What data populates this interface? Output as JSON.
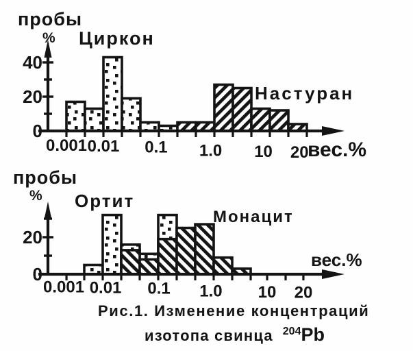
{
  "figure": {
    "caption": {
      "line1": "Рис.1. Изменение концентраций",
      "line2_text": "изотопа свинца",
      "isotope_mass": "204",
      "element_symbol": "Pb"
    },
    "charts": [
      {
        "y_axis_title": "пробы",
        "y_axis_unit": "%",
        "x_axis_unit": "вес.%",
        "series_labels": [
          "Циркон",
          "Настуран"
        ],
        "y_ticks": [
          {
            "v": 0,
            "label": "0"
          },
          {
            "v": 10,
            "label": ""
          },
          {
            "v": 20,
            "label": "20"
          },
          {
            "v": 30,
            "label": ""
          },
          {
            "v": 40,
            "label": "40"
          }
        ],
        "x_ticks": [
          {
            "pos": 0,
            "label": "0.001"
          },
          {
            "pos": 2,
            "label": "0.01"
          },
          {
            "pos": 4.85,
            "label": "0.1"
          },
          {
            "pos": 7.8,
            "label": "1.0"
          },
          {
            "pos": 10.65,
            "label": "10"
          },
          {
            "pos": 12.6,
            "label": "20"
          }
        ],
        "x_minor_ticks": [
          0,
          1,
          2,
          3,
          4,
          5,
          6,
          7,
          8,
          9,
          10,
          11,
          12,
          13
        ],
        "bars": [
          {
            "bin": 0,
            "h": 17,
            "p": "dots"
          },
          {
            "bin": 1,
            "h": 13,
            "p": "dots"
          },
          {
            "bin": 2,
            "h": 43,
            "p": "dots"
          },
          {
            "bin": 3,
            "h": 19,
            "p": "dots"
          },
          {
            "bin": 4,
            "h": 5,
            "p": "dots"
          },
          {
            "bin": 5,
            "h": 3,
            "p": "dots"
          },
          {
            "bin": 6,
            "h": 5,
            "p": "hatchUp"
          },
          {
            "bin": 7,
            "h": 5,
            "p": "hatchUp"
          },
          {
            "bin": 8,
            "h": 27,
            "p": "hatchUp"
          },
          {
            "bin": 9,
            "h": 25,
            "p": "hatchUp"
          },
          {
            "bin": 10,
            "h": 13,
            "p": "hatchUp"
          },
          {
            "bin": 11,
            "h": 12,
            "p": "hatchUp"
          },
          {
            "bin": 12,
            "h": 4,
            "p": "hatchUp"
          }
        ]
      },
      {
        "y_axis_title": "пробы",
        "y_axis_unit": "%",
        "x_axis_unit": "вес.%",
        "series_labels": [
          "Ортит",
          "Монацит"
        ],
        "y_ticks": [
          {
            "v": 0,
            "label": "0"
          },
          {
            "v": 10,
            "label": ""
          },
          {
            "v": 20,
            "label": "20"
          },
          {
            "v": 30,
            "label": ""
          }
        ],
        "x_ticks": [
          {
            "pos": -1.11,
            "label": "0.001"
          },
          {
            "pos": 1.15,
            "label": "0.01"
          },
          {
            "pos": 4.04,
            "label": "0.1"
          },
          {
            "pos": 6.85,
            "label": "1.0"
          },
          {
            "pos": 9.89,
            "label": "10"
          },
          {
            "pos": 11.85,
            "label": "20"
          }
        ],
        "x_minor_ticks": [
          -0.96,
          0,
          1,
          2,
          3,
          4,
          5,
          6,
          7,
          8,
          9,
          9.89,
          10.89,
          11.85
        ],
        "bars": [
          {
            "bin": 0,
            "h": 5,
            "p": "dots"
          },
          {
            "bin": 1,
            "h": 32,
            "p": "dots"
          },
          {
            "bin": 2,
            "h": 16,
            "p": "dots"
          },
          {
            "bin": 3,
            "h": 11,
            "p": "dots"
          },
          {
            "bin": 4,
            "h": 32,
            "p": "dots"
          },
          {
            "bin": 2,
            "h": 13,
            "p": "hatchDown"
          },
          {
            "bin": 3,
            "h": 8,
            "p": "hatchDown"
          },
          {
            "bin": 4,
            "h": 19,
            "p": "hatchDown"
          },
          {
            "bin": 5,
            "h": 25,
            "p": "hatchDown"
          },
          {
            "bin": 6,
            "h": 27,
            "p": "hatchDown"
          },
          {
            "bin": 7,
            "h": 9,
            "p": "hatchDown"
          },
          {
            "bin": 8,
            "h": 3,
            "p": "hatchDown"
          }
        ]
      }
    ]
  },
  "chart_data": [
    {
      "type": "bar",
      "subtype": "overlaid histograms, logarithmic x axis",
      "title": "",
      "xlabel": "вес.%",
      "ylabel": "пробы %",
      "x_tick_labels": [
        "0.001",
        "0.01",
        "0.1",
        "1.0",
        "10",
        "20"
      ],
      "y_ticks": [
        0,
        20,
        40
      ],
      "ylim": [
        0,
        47
      ],
      "series": [
        {
          "name": "Циркон",
          "fill": "dotted",
          "values_pct": [
            17,
            13,
            43,
            19,
            5,
            3
          ]
        },
        {
          "name": "Настуран",
          "fill": "diagonal-hatch /",
          "values_pct": [
            5,
            5,
            27,
            25,
            13,
            12,
            4
          ]
        }
      ],
      "note": "consecutive log bins from 0.001 to ~30 вес.%; Циркон spans ~0.001–0.4, Настуран ~0.4–30"
    },
    {
      "type": "bar",
      "subtype": "overlaid histograms, logarithmic x axis",
      "title": "",
      "xlabel": "вес.%",
      "ylabel": "пробы %",
      "x_tick_labels": [
        "0.001",
        "0.01",
        "0.1",
        "1.0",
        "10",
        "20"
      ],
      "y_ticks": [
        0,
        20
      ],
      "ylim": [
        0,
        38
      ],
      "series": [
        {
          "name": "Ортит",
          "fill": "dotted",
          "values_pct": [
            5,
            32,
            16,
            11,
            32
          ]
        },
        {
          "name": "Монацит",
          "fill": "diagonal-hatch \\",
          "values_pct": [
            13,
            8,
            19,
            25,
            27,
            9,
            3
          ]
        }
      ],
      "note": "overlapping bins ~0.003–0.3 вес.% where both dotted and hatched histograms are drawn; Ортит spans ~0.003–0.2, Монацит ~0.03–3"
    }
  ]
}
